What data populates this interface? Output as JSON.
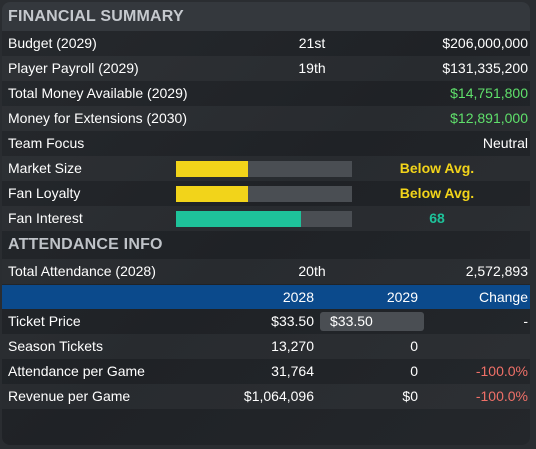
{
  "financial": {
    "title": "FINANCIAL SUMMARY",
    "rows": [
      {
        "label": "Budget (2029)",
        "rank": "21st",
        "value": "$206,000,000"
      },
      {
        "label": "Player Payroll (2029)",
        "rank": "19th",
        "value": "$131,335,200"
      },
      {
        "label": "Total Money Available (2029)",
        "rank": "",
        "value": "$14,751,800"
      },
      {
        "label": "Money for Extensions (2030)",
        "rank": "",
        "value": "$12,891,000"
      },
      {
        "label": "Team Focus",
        "rank": "",
        "value": "Neutral"
      }
    ],
    "bars": [
      {
        "label": "Market Size",
        "level": 0.41,
        "text": "Below Avg.",
        "color": "#f2d41a"
      },
      {
        "label": "Fan Loyalty",
        "level": 0.41,
        "text": "Below Avg.",
        "color": "#f2d41a"
      },
      {
        "label": "Fan Interest",
        "level": 0.71,
        "text": "68",
        "color": "#1ec29a"
      }
    ]
  },
  "attendance": {
    "title": "ATTENDANCE INFO",
    "total": {
      "label": "Total Attendance (2028)",
      "rank": "20th",
      "value": "2,572,893"
    },
    "columns": [
      "",
      "2028",
      "2029",
      "Change"
    ],
    "rows": [
      {
        "label": "Ticket Price",
        "y2028": "$33.50",
        "y2029": "$33.50",
        "change": "-"
      },
      {
        "label": "Season Tickets",
        "y2028": "13,270",
        "y2029": "0",
        "change": ""
      },
      {
        "label": "Attendance per Game",
        "y2028": "31,764",
        "y2029": "0",
        "change": "-100.0%"
      },
      {
        "label": "Revenue per Game",
        "y2028": "$1,064,096",
        "y2029": "$0",
        "change": "-100.0%"
      }
    ]
  },
  "colors": {
    "header_blue": "#0b4a8c",
    "positive": "#5fe06b",
    "negative": "#f07068"
  }
}
